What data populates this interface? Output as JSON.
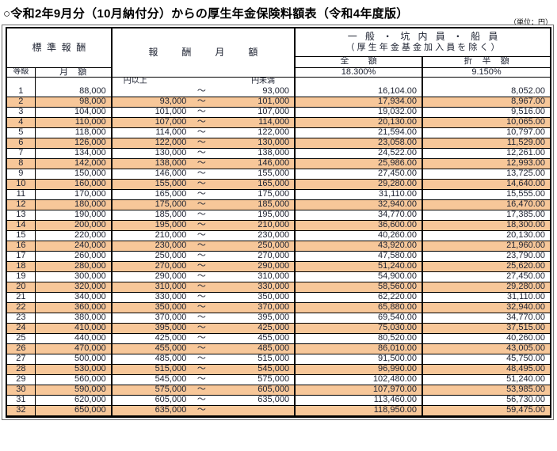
{
  "title": "○令和2年9月分（10月納付分）からの厚生年金保険料額表（令和4年度版）",
  "unit_note": "（単位：円）",
  "table": {
    "header": {
      "standard_reward": "標準報酬",
      "grade": "等級",
      "monthly_amount": "月額",
      "reward_monthly": "報酬月額",
      "group_title_line1": "一般・坑内員・船員",
      "group_title_line2": "（厚生年金基金加入員を除く）",
      "full_amount": "全額",
      "full_rate": "18.300%",
      "half_amount": "折半額",
      "half_rate": "9.150%",
      "yen_or_more": "円以上",
      "yen_less_than": "円未満",
      "tilde": "～"
    },
    "rows": [
      {
        "grade": "1",
        "monthly": "88,000",
        "from": "",
        "to": "93,000",
        "full": "16,104.00",
        "half": "8,052.00",
        "hl": false
      },
      {
        "grade": "2",
        "monthly": "98,000",
        "from": "93,000",
        "to": "101,000",
        "full": "17,934.00",
        "half": "8,967.00",
        "hl": true
      },
      {
        "grade": "3",
        "monthly": "104,000",
        "from": "101,000",
        "to": "107,000",
        "full": "19,032.00",
        "half": "9,516.00",
        "hl": false
      },
      {
        "grade": "4",
        "monthly": "110,000",
        "from": "107,000",
        "to": "114,000",
        "full": "20,130.00",
        "half": "10,065.00",
        "hl": true
      },
      {
        "grade": "5",
        "monthly": "118,000",
        "from": "114,000",
        "to": "122,000",
        "full": "21,594.00",
        "half": "10,797.00",
        "hl": false
      },
      {
        "grade": "6",
        "monthly": "126,000",
        "from": "122,000",
        "to": "130,000",
        "full": "23,058.00",
        "half": "11,529.00",
        "hl": true
      },
      {
        "grade": "7",
        "monthly": "134,000",
        "from": "130,000",
        "to": "138,000",
        "full": "24,522.00",
        "half": "12,261.00",
        "hl": false
      },
      {
        "grade": "8",
        "monthly": "142,000",
        "from": "138,000",
        "to": "146,000",
        "full": "25,986.00",
        "half": "12,993.00",
        "hl": true
      },
      {
        "grade": "9",
        "monthly": "150,000",
        "from": "146,000",
        "to": "155,000",
        "full": "27,450.00",
        "half": "13,725.00",
        "hl": false
      },
      {
        "grade": "10",
        "monthly": "160,000",
        "from": "155,000",
        "to": "165,000",
        "full": "29,280.00",
        "half": "14,640.00",
        "hl": true
      },
      {
        "grade": "11",
        "monthly": "170,000",
        "from": "165,000",
        "to": "175,000",
        "full": "31,110.00",
        "half": "15,555.00",
        "hl": false
      },
      {
        "grade": "12",
        "monthly": "180,000",
        "from": "175,000",
        "to": "185,000",
        "full": "32,940.00",
        "half": "16,470.00",
        "hl": true
      },
      {
        "grade": "13",
        "monthly": "190,000",
        "from": "185,000",
        "to": "195,000",
        "full": "34,770.00",
        "half": "17,385.00",
        "hl": false
      },
      {
        "grade": "14",
        "monthly": "200,000",
        "from": "195,000",
        "to": "210,000",
        "full": "36,600.00",
        "half": "18,300.00",
        "hl": true
      },
      {
        "grade": "15",
        "monthly": "220,000",
        "from": "210,000",
        "to": "230,000",
        "full": "40,260.00",
        "half": "20,130.00",
        "hl": false
      },
      {
        "grade": "16",
        "monthly": "240,000",
        "from": "230,000",
        "to": "250,000",
        "full": "43,920.00",
        "half": "21,960.00",
        "hl": true
      },
      {
        "grade": "17",
        "monthly": "260,000",
        "from": "250,000",
        "to": "270,000",
        "full": "47,580.00",
        "half": "23,790.00",
        "hl": false
      },
      {
        "grade": "18",
        "monthly": "280,000",
        "from": "270,000",
        "to": "290,000",
        "full": "51,240.00",
        "half": "25,620.00",
        "hl": true
      },
      {
        "grade": "19",
        "monthly": "300,000",
        "from": "290,000",
        "to": "310,000",
        "full": "54,900.00",
        "half": "27,450.00",
        "hl": false
      },
      {
        "grade": "20",
        "monthly": "320,000",
        "from": "310,000",
        "to": "330,000",
        "full": "58,560.00",
        "half": "29,280.00",
        "hl": true
      },
      {
        "grade": "21",
        "monthly": "340,000",
        "from": "330,000",
        "to": "350,000",
        "full": "62,220.00",
        "half": "31,110.00",
        "hl": false
      },
      {
        "grade": "22",
        "monthly": "360,000",
        "from": "350,000",
        "to": "370,000",
        "full": "65,880.00",
        "half": "32,940.00",
        "hl": true
      },
      {
        "grade": "23",
        "monthly": "380,000",
        "from": "370,000",
        "to": "395,000",
        "full": "69,540.00",
        "half": "34,770.00",
        "hl": false
      },
      {
        "grade": "24",
        "monthly": "410,000",
        "from": "395,000",
        "to": "425,000",
        "full": "75,030.00",
        "half": "37,515.00",
        "hl": true
      },
      {
        "grade": "25",
        "monthly": "440,000",
        "from": "425,000",
        "to": "455,000",
        "full": "80,520.00",
        "half": "40,260.00",
        "hl": false
      },
      {
        "grade": "26",
        "monthly": "470,000",
        "from": "455,000",
        "to": "485,000",
        "full": "86,010.00",
        "half": "43,005.00",
        "hl": true
      },
      {
        "grade": "27",
        "monthly": "500,000",
        "from": "485,000",
        "to": "515,000",
        "full": "91,500.00",
        "half": "45,750.00",
        "hl": false
      },
      {
        "grade": "28",
        "monthly": "530,000",
        "from": "515,000",
        "to": "545,000",
        "full": "96,990.00",
        "half": "48,495.00",
        "hl": true
      },
      {
        "grade": "29",
        "monthly": "560,000",
        "from": "545,000",
        "to": "575,000",
        "full": "102,480.00",
        "half": "51,240.00",
        "hl": false
      },
      {
        "grade": "30",
        "monthly": "590,000",
        "from": "575,000",
        "to": "605,000",
        "full": "107,970.00",
        "half": "53,985.00",
        "hl": true
      },
      {
        "grade": "31",
        "monthly": "620,000",
        "from": "605,000",
        "to": "635,000",
        "full": "113,460.00",
        "half": "56,730.00",
        "hl": false
      },
      {
        "grade": "32",
        "monthly": "650,000",
        "from": "635,000",
        "to": "",
        "full": "118,950.00",
        "half": "59,475.00",
        "hl": true
      }
    ],
    "colors": {
      "highlight_row": "#f7c799",
      "border": "#000000",
      "text": "#1c2130"
    }
  }
}
